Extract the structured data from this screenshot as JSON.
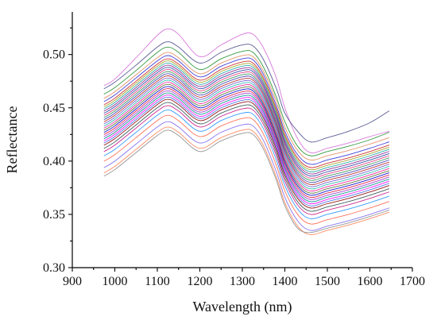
{
  "chart_data": {
    "type": "line",
    "title": "",
    "xlabel": "Wavelength (nm)",
    "ylabel": "Reflectance",
    "xlim": [
      900,
      1700
    ],
    "ylim": [
      0.3,
      0.54
    ],
    "x_ticks": [
      "900",
      "1000",
      "1100",
      "1200",
      "1300",
      "1400",
      "1500",
      "1600",
      "1700"
    ],
    "x_tick_values": [
      900,
      1000,
      1100,
      1200,
      1300,
      1400,
      1500,
      1600,
      1700
    ],
    "y_ticks": [
      "0.30",
      "0.35",
      "0.40",
      "0.45",
      "0.50"
    ],
    "y_tick_values": [
      0.3,
      0.35,
      0.4,
      0.45,
      0.5
    ],
    "grid": false,
    "legend": "none",
    "x": [
      975,
      1000,
      1050,
      1100,
      1125,
      1150,
      1200,
      1250,
      1300,
      1325,
      1350,
      1380,
      1400,
      1430,
      1460,
      1500,
      1550,
      1600,
      1645
    ],
    "series": [
      {
        "color": "#d46bd8",
        "values": [
          0.471,
          0.477,
          0.497,
          0.518,
          0.524,
          0.519,
          0.498,
          0.509,
          0.519,
          0.519,
          0.506,
          0.478,
          0.45,
          0.421,
          0.408,
          0.412,
          0.417,
          0.423,
          0.428
        ]
      },
      {
        "color": "#4a4a8c",
        "values": [
          0.468,
          0.474,
          0.49,
          0.507,
          0.512,
          0.507,
          0.492,
          0.502,
          0.509,
          0.508,
          0.495,
          0.468,
          0.445,
          0.428,
          0.418,
          0.422,
          0.428,
          0.436,
          0.447
        ]
      },
      {
        "color": "#1f8f2f",
        "values": [
          0.463,
          0.469,
          0.485,
          0.502,
          0.507,
          0.502,
          0.486,
          0.496,
          0.503,
          0.502,
          0.488,
          0.46,
          0.437,
          0.414,
          0.405,
          0.409,
          0.414,
          0.42,
          0.427
        ]
      },
      {
        "color": "#e08a5a",
        "values": [
          0.459,
          0.465,
          0.481,
          0.497,
          0.502,
          0.497,
          0.482,
          0.492,
          0.499,
          0.498,
          0.484,
          0.456,
          0.432,
          0.41,
          0.401,
          0.405,
          0.41,
          0.416,
          0.422
        ]
      },
      {
        "color": "#2b2bd6",
        "values": [
          0.456,
          0.462,
          0.478,
          0.494,
          0.499,
          0.494,
          0.479,
          0.489,
          0.496,
          0.495,
          0.481,
          0.452,
          0.428,
          0.406,
          0.397,
          0.401,
          0.406,
          0.412,
          0.418
        ]
      },
      {
        "color": "#cc2020",
        "values": [
          0.453,
          0.459,
          0.475,
          0.491,
          0.496,
          0.491,
          0.476,
          0.486,
          0.493,
          0.492,
          0.478,
          0.449,
          0.425,
          0.403,
          0.394,
          0.398,
          0.403,
          0.409,
          0.415
        ]
      },
      {
        "color": "#a0a020",
        "values": [
          0.451,
          0.457,
          0.473,
          0.489,
          0.494,
          0.489,
          0.474,
          0.484,
          0.491,
          0.49,
          0.476,
          0.447,
          0.423,
          0.401,
          0.392,
          0.396,
          0.401,
          0.407,
          0.413
        ]
      },
      {
        "color": "#18a3a3",
        "values": [
          0.449,
          0.455,
          0.471,
          0.487,
          0.492,
          0.487,
          0.472,
          0.482,
          0.489,
          0.488,
          0.474,
          0.445,
          0.421,
          0.399,
          0.39,
          0.394,
          0.399,
          0.405,
          0.411
        ]
      },
      {
        "color": "#8b1d8b",
        "values": [
          0.447,
          0.453,
          0.469,
          0.485,
          0.49,
          0.485,
          0.47,
          0.48,
          0.487,
          0.486,
          0.472,
          0.443,
          0.419,
          0.397,
          0.388,
          0.392,
          0.397,
          0.403,
          0.409
        ]
      },
      {
        "color": "#1e3f9e",
        "values": [
          0.445,
          0.451,
          0.467,
          0.483,
          0.488,
          0.483,
          0.468,
          0.478,
          0.485,
          0.484,
          0.47,
          0.441,
          0.417,
          0.395,
          0.386,
          0.39,
          0.395,
          0.401,
          0.407
        ]
      },
      {
        "color": "#e0357a",
        "values": [
          0.443,
          0.449,
          0.465,
          0.481,
          0.486,
          0.481,
          0.466,
          0.476,
          0.483,
          0.482,
          0.468,
          0.439,
          0.415,
          0.393,
          0.384,
          0.388,
          0.393,
          0.399,
          0.405
        ]
      },
      {
        "color": "#2e8b57",
        "values": [
          0.441,
          0.447,
          0.463,
          0.479,
          0.484,
          0.479,
          0.464,
          0.474,
          0.481,
          0.48,
          0.466,
          0.437,
          0.413,
          0.391,
          0.382,
          0.386,
          0.391,
          0.397,
          0.403
        ]
      },
      {
        "color": "#3b3bb0",
        "values": [
          0.439,
          0.445,
          0.461,
          0.477,
          0.482,
          0.477,
          0.462,
          0.472,
          0.479,
          0.478,
          0.464,
          0.435,
          0.411,
          0.389,
          0.38,
          0.384,
          0.389,
          0.395,
          0.401
        ]
      },
      {
        "color": "#b22222",
        "values": [
          0.437,
          0.443,
          0.459,
          0.475,
          0.48,
          0.475,
          0.46,
          0.47,
          0.477,
          0.476,
          0.462,
          0.433,
          0.409,
          0.387,
          0.378,
          0.382,
          0.387,
          0.393,
          0.399
        ]
      },
      {
        "color": "#6a5acd",
        "values": [
          0.435,
          0.441,
          0.457,
          0.473,
          0.478,
          0.473,
          0.458,
          0.468,
          0.475,
          0.474,
          0.46,
          0.431,
          0.407,
          0.385,
          0.376,
          0.38,
          0.385,
          0.391,
          0.397
        ]
      },
      {
        "color": "#20b2aa",
        "values": [
          0.433,
          0.439,
          0.455,
          0.471,
          0.476,
          0.471,
          0.456,
          0.466,
          0.473,
          0.472,
          0.458,
          0.429,
          0.405,
          0.383,
          0.374,
          0.378,
          0.383,
          0.389,
          0.395
        ]
      },
      {
        "color": "#ff1493",
        "values": [
          0.431,
          0.437,
          0.453,
          0.469,
          0.474,
          0.469,
          0.454,
          0.464,
          0.471,
          0.47,
          0.456,
          0.427,
          0.403,
          0.381,
          0.372,
          0.376,
          0.381,
          0.387,
          0.393
        ]
      },
      {
        "color": "#556b2f",
        "values": [
          0.429,
          0.435,
          0.451,
          0.467,
          0.472,
          0.467,
          0.452,
          0.462,
          0.469,
          0.468,
          0.454,
          0.425,
          0.401,
          0.379,
          0.37,
          0.374,
          0.379,
          0.385,
          0.391
        ]
      },
      {
        "color": "#0000cd",
        "values": [
          0.427,
          0.433,
          0.449,
          0.465,
          0.47,
          0.465,
          0.45,
          0.46,
          0.467,
          0.466,
          0.452,
          0.423,
          0.399,
          0.377,
          0.368,
          0.372,
          0.377,
          0.383,
          0.389
        ]
      },
      {
        "color": "#dc143c",
        "values": [
          0.425,
          0.431,
          0.447,
          0.463,
          0.468,
          0.463,
          0.448,
          0.458,
          0.465,
          0.464,
          0.45,
          0.421,
          0.397,
          0.375,
          0.366,
          0.37,
          0.375,
          0.381,
          0.387
        ]
      },
      {
        "color": "#9932cc",
        "values": [
          0.423,
          0.429,
          0.445,
          0.461,
          0.466,
          0.461,
          0.446,
          0.456,
          0.463,
          0.462,
          0.448,
          0.419,
          0.395,
          0.373,
          0.364,
          0.368,
          0.373,
          0.379,
          0.385
        ]
      },
      {
        "color": "#008b8b",
        "values": [
          0.421,
          0.427,
          0.443,
          0.459,
          0.464,
          0.459,
          0.444,
          0.454,
          0.461,
          0.46,
          0.446,
          0.417,
          0.393,
          0.371,
          0.362,
          0.366,
          0.371,
          0.377,
          0.383
        ]
      },
      {
        "color": "#ff00ff",
        "values": [
          0.419,
          0.425,
          0.441,
          0.457,
          0.462,
          0.457,
          0.442,
          0.452,
          0.459,
          0.458,
          0.444,
          0.415,
          0.391,
          0.369,
          0.36,
          0.364,
          0.369,
          0.375,
          0.381
        ]
      },
      {
        "color": "#4169e1",
        "values": [
          0.417,
          0.423,
          0.439,
          0.455,
          0.46,
          0.455,
          0.44,
          0.45,
          0.457,
          0.456,
          0.442,
          0.413,
          0.389,
          0.367,
          0.358,
          0.362,
          0.367,
          0.373,
          0.379
        ]
      },
      {
        "color": "#8b0000",
        "values": [
          0.415,
          0.421,
          0.437,
          0.453,
          0.458,
          0.453,
          0.438,
          0.448,
          0.455,
          0.454,
          0.44,
          0.411,
          0.387,
          0.365,
          0.356,
          0.36,
          0.365,
          0.371,
          0.377
        ]
      },
      {
        "color": "#2f4f4f",
        "values": [
          0.412,
          0.418,
          0.434,
          0.45,
          0.455,
          0.45,
          0.435,
          0.445,
          0.452,
          0.451,
          0.437,
          0.408,
          0.384,
          0.362,
          0.353,
          0.357,
          0.362,
          0.368,
          0.374
        ]
      },
      {
        "color": "#c71585",
        "values": [
          0.409,
          0.415,
          0.431,
          0.447,
          0.452,
          0.447,
          0.432,
          0.442,
          0.449,
          0.448,
          0.434,
          0.405,
          0.381,
          0.359,
          0.35,
          0.354,
          0.359,
          0.365,
          0.371
        ]
      },
      {
        "color": "#1e90ff",
        "values": [
          0.405,
          0.411,
          0.427,
          0.443,
          0.448,
          0.443,
          0.428,
          0.438,
          0.445,
          0.444,
          0.43,
          0.401,
          0.377,
          0.355,
          0.346,
          0.35,
          0.355,
          0.361,
          0.367
        ]
      },
      {
        "color": "#ff6347",
        "values": [
          0.4,
          0.406,
          0.422,
          0.438,
          0.443,
          0.438,
          0.423,
          0.433,
          0.44,
          0.439,
          0.425,
          0.396,
          0.372,
          0.35,
          0.341,
          0.345,
          0.35,
          0.356,
          0.362
        ]
      },
      {
        "color": "#7b68ee",
        "values": [
          0.394,
          0.4,
          0.416,
          0.432,
          0.437,
          0.432,
          0.417,
          0.427,
          0.434,
          0.433,
          0.419,
          0.39,
          0.366,
          0.344,
          0.335,
          0.339,
          0.344,
          0.35,
          0.356
        ]
      },
      {
        "color": "#ff7f50",
        "values": [
          0.389,
          0.395,
          0.411,
          0.427,
          0.432,
          0.427,
          0.412,
          0.422,
          0.429,
          0.428,
          0.414,
          0.385,
          0.361,
          0.339,
          0.331,
          0.335,
          0.34,
          0.346,
          0.352
        ]
      },
      {
        "color": "#8a8a8a",
        "values": [
          0.386,
          0.392,
          0.408,
          0.424,
          0.429,
          0.424,
          0.409,
          0.419,
          0.426,
          0.425,
          0.411,
          0.382,
          0.358,
          0.337,
          0.333,
          0.337,
          0.342,
          0.348,
          0.354
        ]
      }
    ]
  }
}
